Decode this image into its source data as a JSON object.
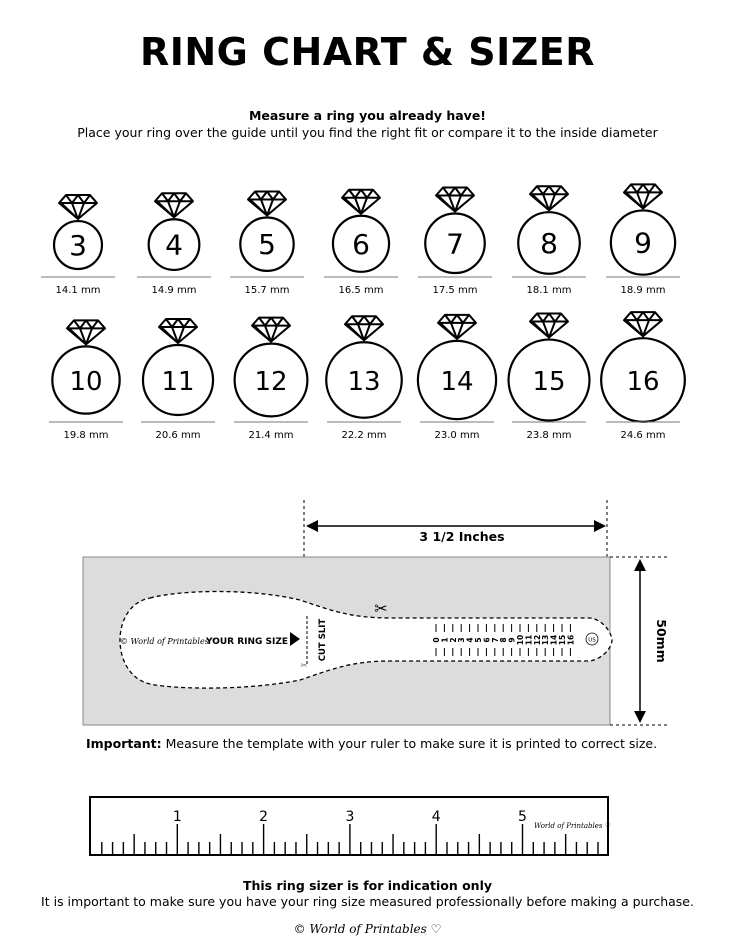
{
  "title": "RING CHART & SIZER",
  "subtitle": "Measure a ring you already have!",
  "instructions": "Place your ring over the guide until you find the right fit or compare it to the inside diameter",
  "rings": [
    {
      "size": "3",
      "mm": 14.1,
      "label": "14.1 mm"
    },
    {
      "size": "4",
      "mm": 14.9,
      "label": "14.9 mm"
    },
    {
      "size": "5",
      "mm": 15.7,
      "label": "15.7 mm"
    },
    {
      "size": "6",
      "mm": 16.5,
      "label": "16.5 mm"
    },
    {
      "size": "7",
      "mm": 17.5,
      "label": "17.5 mm"
    },
    {
      "size": "8",
      "mm": 18.1,
      "label": "18.1 mm"
    },
    {
      "size": "9",
      "mm": 18.9,
      "label": "18.9 mm"
    },
    {
      "size": "10",
      "mm": 19.8,
      "label": "19.8 mm"
    },
    {
      "size": "11",
      "mm": 20.6,
      "label": "20.6 mm"
    },
    {
      "size": "12",
      "mm": 21.4,
      "label": "21.4 mm"
    },
    {
      "size": "13",
      "mm": 22.2,
      "label": "22.2 mm"
    },
    {
      "size": "14",
      "mm": 23.0,
      "label": "23.0 mm"
    },
    {
      "size": "15",
      "mm": 23.8,
      "label": "23.8 mm"
    },
    {
      "size": "16",
      "mm": 24.6,
      "label": "24.6 mm"
    }
  ],
  "sizer": {
    "width_label": "3 1/2 Inches",
    "height_label": "50mm",
    "brand": "© World of Printables ♡",
    "your_ring_size": "YOUR RING SIZE",
    "cut_slit": "CUT SLIT",
    "unit_badge": "US",
    "scale": [
      "0",
      "1",
      "2",
      "3",
      "4",
      "5",
      "6",
      "7",
      "8",
      "9",
      "10",
      "11",
      "12",
      "13",
      "14",
      "15",
      "16"
    ],
    "background": "#dcdcdc"
  },
  "important_label": "Important:",
  "important_text": " Measure the template with your ruler to make sure it is printed to correct size.",
  "ruler": {
    "numbers": [
      "1",
      "2",
      "3",
      "4",
      "5"
    ],
    "brand": "World of Printables ♡"
  },
  "disclaimer_title": "This ring sizer is for indication only",
  "disclaimer_text": "It is important to make sure you have your ring size measured professionally before making a purchase.",
  "footer_brand": "© World of Printables ♡"
}
